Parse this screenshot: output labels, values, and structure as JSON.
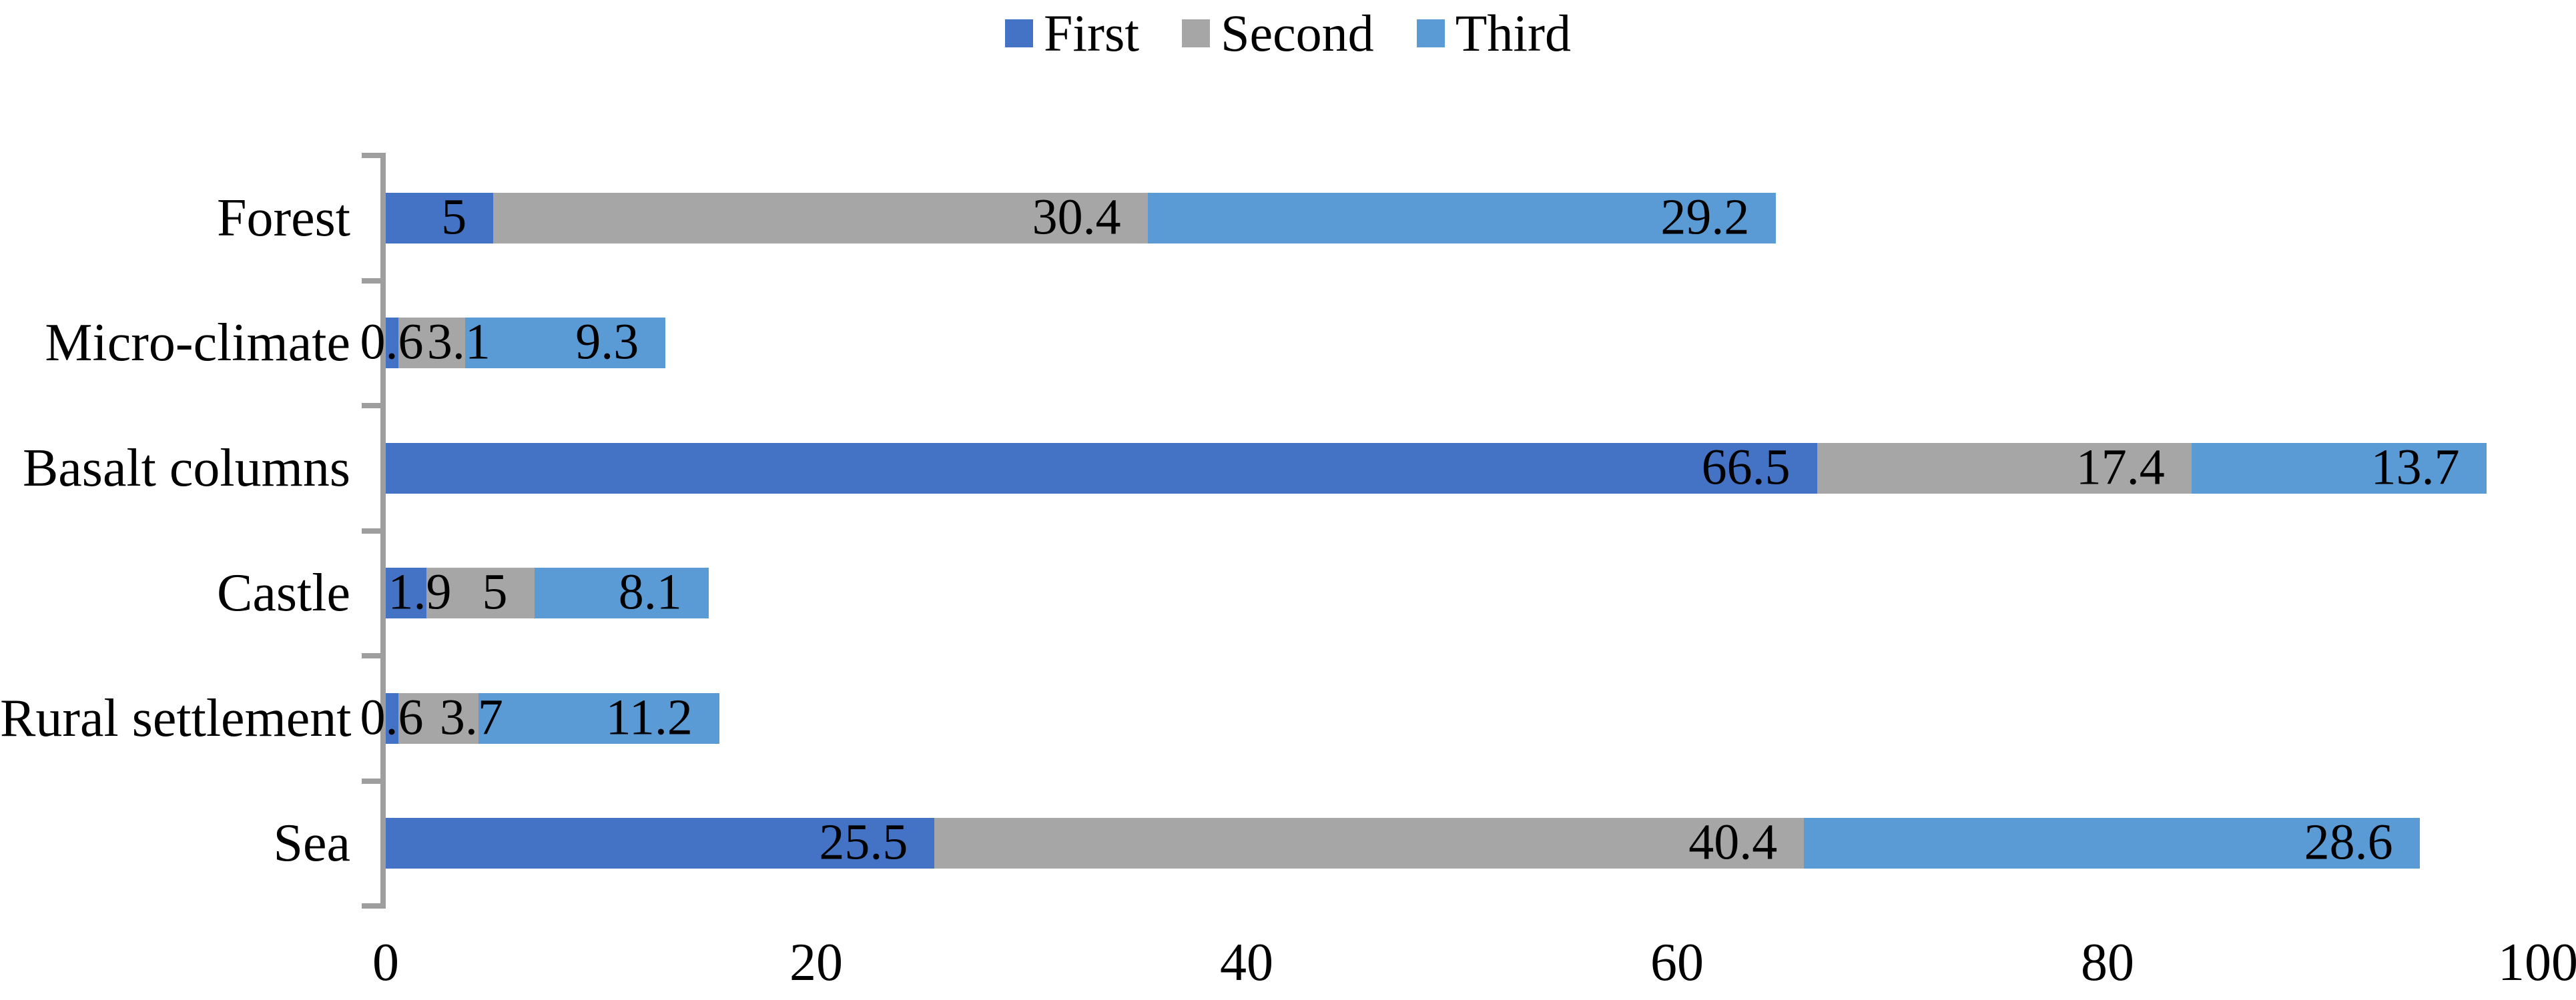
{
  "chart_data": {
    "type": "bar",
    "orientation": "horizontal",
    "stacked": true,
    "title": "",
    "xlabel": "",
    "ylabel": "",
    "categories": [
      "Forest",
      "Micro-climate",
      "Basalt columns",
      "Castle",
      "Rural settlement",
      "Sea"
    ],
    "series": [
      {
        "name": "First",
        "color": "#4472C4",
        "values": [
          5,
          0.6,
          66.5,
          1.9,
          0.6,
          25.5
        ]
      },
      {
        "name": "Second",
        "color": "#A6A6A6",
        "values": [
          30.4,
          3.1,
          17.4,
          5,
          3.7,
          40.4
        ]
      },
      {
        "name": "Third",
        "color": "#5B9BD5",
        "values": [
          29.2,
          9.3,
          13.7,
          8.1,
          11.2,
          28.6
        ]
      }
    ],
    "data_labels_visible": true,
    "xlim": [
      0,
      100
    ],
    "xticks": [
      "0",
      "20",
      "40",
      "60",
      "80",
      "100"
    ],
    "grid": false,
    "legend_position": "top",
    "axis_color": "#9E9E9E",
    "text_color": "#000000",
    "background": "#FFFFFF"
  }
}
